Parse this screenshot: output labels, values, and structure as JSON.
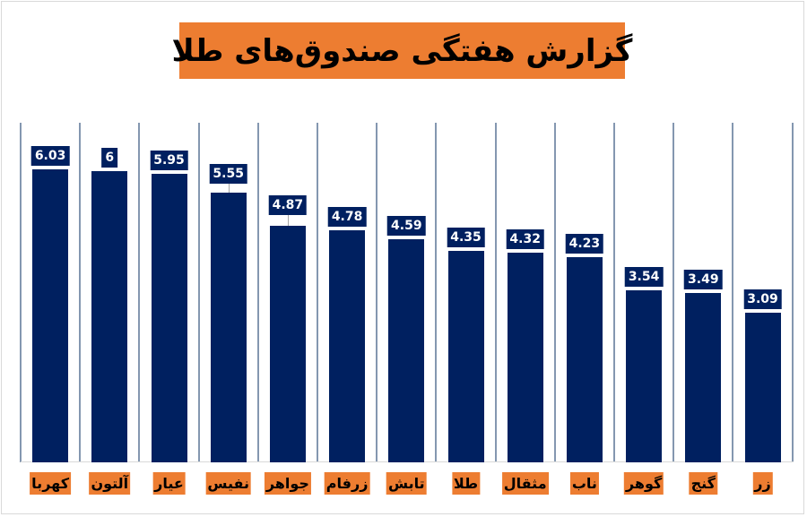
{
  "title": "گزارش هفتگی صندوق‌های طلا",
  "colors": {
    "bar": "#002060",
    "accent": "#ed7d31",
    "grid": "#8497b0"
  },
  "chart_data": {
    "type": "bar",
    "title": "گزارش هفتگی صندوق‌های طلا",
    "xlabel": "",
    "ylabel": "",
    "categories": [
      "کهربا",
      "آلتون",
      "عیار",
      "نفیس",
      "جواهر",
      "زرفام",
      "تابش",
      "طلا",
      "مثقال",
      "ناب",
      "گوهر",
      "گنج",
      "زر"
    ],
    "values": [
      6.03,
      6,
      5.95,
      5.55,
      4.87,
      4.78,
      4.59,
      4.35,
      4.32,
      4.23,
      3.54,
      3.49,
      3.09
    ],
    "data_labels": [
      "6.03",
      "6",
      "5.95",
      "5.55",
      "4.87",
      "4.78",
      "4.59",
      "4.35",
      "4.32",
      "4.23",
      "3.54",
      "3.49",
      "3.09"
    ],
    "ylim": [
      0,
      6.9
    ],
    "grid": "vertical category separators",
    "legend": "none"
  }
}
